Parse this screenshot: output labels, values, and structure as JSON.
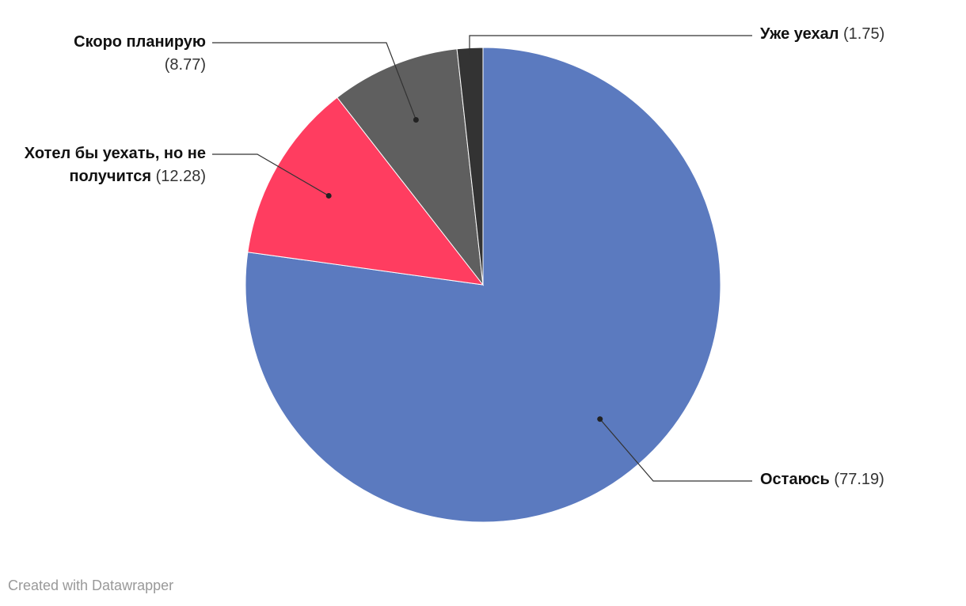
{
  "chart_data": {
    "type": "pie",
    "categories": [
      "Остаюсь",
      "Хотел бы уехать, но не получится",
      "Скоро планирую",
      "Уже уехал"
    ],
    "values": [
      77.19,
      12.28,
      8.77,
      1.75
    ],
    "value_labels": [
      "(77.19)",
      "(12.28)",
      "(8.77)",
      "(1.75)"
    ],
    "colors": [
      "#5b7abf",
      "#ff3d60",
      "#5f5f5f",
      "#333333"
    ],
    "credit": "Created with Datawrapper"
  }
}
